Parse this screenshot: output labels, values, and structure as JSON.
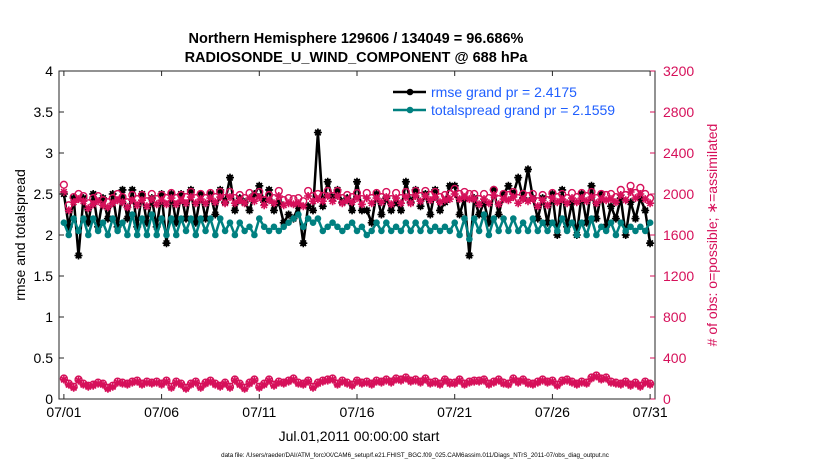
{
  "chart_data": {
    "type": "line",
    "title": "Northern Hemisphere 129606 / 134049 = 96.686%",
    "subtitle": "RADIOSONDE_U_WIND_COMPONENT @ 688 hPa",
    "xlabel": "Jul.01,2011 00:00:00 start",
    "ylabel": "rmse and totalspread",
    "y2label": "# of obs: o=possible; ∗=assimilated",
    "footnote": "data file: /Users/raeder/DAI/ATM_forcXX/CAM6_setup/f.e21.FHIST_BGC.f09_025.CAM6assim.011/Diags_NTrS_2011-07/obs_diag_output.nc",
    "xlim": [
      0.75,
      31.25
    ],
    "ylim": [
      0,
      4
    ],
    "y2lim": [
      0,
      3200
    ],
    "x_tick_values": [
      1,
      6,
      11,
      16,
      21,
      26,
      31
    ],
    "x_tick_labels": [
      "07/01",
      "07/06",
      "07/11",
      "07/16",
      "07/21",
      "07/26",
      "07/31"
    ],
    "y_tick_values": [
      0,
      0.5,
      1,
      1.5,
      2,
      2.5,
      3,
      3.5,
      4
    ],
    "y_tick_labels": [
      "0",
      "0.5",
      "1",
      "1.5",
      "2",
      "2.5",
      "3",
      "3.5",
      "4"
    ],
    "y2_tick_values": [
      0,
      400,
      800,
      1200,
      1600,
      2000,
      2400,
      2800,
      3200
    ],
    "y2_tick_labels": [
      "0",
      "400",
      "800",
      "1200",
      "1600",
      "2000",
      "2400",
      "2800",
      "3200"
    ],
    "grid": false,
    "legend_position": "top-right",
    "colors": {
      "rmse": "#000000",
      "spread": "#008080",
      "obs": "#d6105a",
      "legend_text": "#1f5fff"
    },
    "x": [
      1.0,
      1.25,
      1.5,
      1.75,
      2.0,
      2.25,
      2.5,
      2.75,
      3.0,
      3.25,
      3.5,
      3.75,
      4.0,
      4.25,
      4.5,
      4.75,
      5.0,
      5.25,
      5.5,
      5.75,
      6.0,
      6.25,
      6.5,
      6.75,
      7.0,
      7.25,
      7.5,
      7.75,
      8.0,
      8.25,
      8.5,
      8.75,
      9.0,
      9.25,
      9.5,
      9.75,
      10.0,
      10.25,
      10.5,
      10.75,
      11.0,
      11.25,
      11.5,
      11.75,
      12.0,
      12.25,
      12.5,
      12.75,
      13.0,
      13.25,
      13.5,
      13.75,
      14.0,
      14.25,
      14.5,
      14.75,
      15.0,
      15.25,
      15.5,
      15.75,
      16.0,
      16.25,
      16.5,
      16.75,
      17.0,
      17.25,
      17.5,
      17.75,
      18.0,
      18.25,
      18.5,
      18.75,
      19.0,
      19.25,
      19.5,
      19.75,
      20.0,
      20.25,
      20.5,
      20.75,
      21.0,
      21.25,
      21.5,
      21.75,
      22.0,
      22.25,
      22.5,
      22.75,
      23.0,
      23.25,
      23.5,
      23.75,
      24.0,
      24.25,
      24.5,
      24.75,
      25.0,
      25.25,
      25.5,
      25.75,
      26.0,
      26.25,
      26.5,
      26.75,
      27.0,
      27.25,
      27.5,
      27.75,
      28.0,
      28.25,
      28.5,
      28.75,
      29.0,
      29.25,
      29.5,
      29.75,
      30.0,
      30.25,
      30.5,
      30.75,
      31.0
    ],
    "series": [
      {
        "name": "rmse grand pr = 2.4175",
        "axis": "left",
        "marker": "filled-circle-asterisk",
        "values": [
          2.5,
          2.1,
          2.45,
          1.75,
          2.45,
          2.15,
          2.5,
          2.1,
          2.45,
          2.2,
          2.5,
          2.1,
          2.55,
          2.2,
          2.55,
          2.1,
          2.5,
          2.15,
          2.45,
          2.1,
          2.5,
          1.9,
          2.5,
          2.15,
          2.5,
          2.2,
          2.55,
          2.15,
          2.5,
          2.2,
          2.5,
          2.25,
          2.55,
          2.4,
          2.7,
          2.3,
          2.45,
          2.4,
          2.3,
          2.5,
          2.6,
          2.4,
          2.55,
          2.3,
          2.4,
          2.15,
          2.25,
          2.2,
          2.35,
          1.9,
          2.35,
          2.3,
          3.25,
          2.35,
          2.65,
          2.45,
          2.55,
          2.4,
          2.45,
          2.3,
          2.65,
          2.3,
          2.3,
          2.15,
          2.5,
          2.25,
          2.45,
          2.3,
          2.4,
          2.3,
          2.65,
          2.4,
          2.55,
          2.35,
          2.5,
          2.25,
          2.55,
          2.3,
          2.4,
          2.6,
          2.6,
          2.25,
          2.45,
          1.75,
          2.45,
          2.25,
          2.4,
          2.15,
          2.55,
          2.25,
          2.5,
          2.6,
          2.5,
          2.7,
          2.45,
          2.8,
          2.45,
          2.2,
          2.45,
          2.15,
          2.5,
          2.0,
          2.55,
          2.1,
          2.4,
          2.0,
          2.5,
          2.15,
          2.6,
          2.2,
          2.5,
          2.1,
          2.35,
          2.2,
          2.45,
          2.0,
          2.4,
          2.2,
          2.45,
          2.3,
          1.9
        ]
      },
      {
        "name": "totalspread grand pr = 2.1559",
        "axis": "left",
        "marker": "filled-circle",
        "values": [
          2.15,
          2.0,
          2.2,
          2.05,
          2.2,
          2.0,
          2.2,
          2.05,
          2.15,
          2.0,
          2.2,
          2.05,
          2.15,
          2.0,
          2.25,
          2.0,
          2.2,
          2.0,
          2.25,
          2.0,
          2.2,
          2.0,
          2.2,
          2.0,
          2.2,
          2.05,
          2.2,
          2.0,
          2.2,
          2.05,
          2.2,
          2.0,
          2.2,
          2.05,
          2.15,
          2.0,
          2.15,
          2.05,
          2.1,
          2.0,
          2.2,
          2.1,
          2.05,
          2.1,
          2.05,
          2.1,
          2.15,
          2.2,
          2.25,
          2.1,
          2.2,
          2.15,
          2.2,
          2.05,
          2.1,
          2.15,
          2.1,
          2.05,
          2.1,
          2.15,
          2.05,
          2.1,
          2.0,
          2.05,
          2.15,
          2.05,
          2.15,
          2.05,
          2.1,
          2.05,
          2.15,
          2.05,
          2.15,
          2.05,
          2.15,
          2.05,
          2.1,
          2.05,
          2.1,
          2.05,
          2.15,
          2.0,
          2.2,
          1.95,
          2.2,
          2.05,
          2.25,
          2.0,
          2.2,
          2.05,
          2.2,
          2.05,
          2.2,
          2.05,
          2.15,
          2.05,
          2.2,
          2.05,
          2.15,
          2.05,
          2.15,
          2.05,
          2.2,
          2.05,
          2.15,
          2.0,
          2.15,
          2.0,
          2.2,
          2.0,
          2.1,
          2.05,
          2.15,
          2.0,
          2.15,
          2.05,
          2.1,
          2.05,
          2.1,
          2.05,
          2.15
        ]
      },
      {
        "name": "# obs possible",
        "axis": "right",
        "marker": "open-circle",
        "values": [
          2090,
          1890,
          1970,
          2000,
          1980,
          1910,
          1960,
          1980,
          1940,
          1920,
          1960,
          2000,
          1970,
          1920,
          1990,
          1950,
          1990,
          1930,
          2000,
          1950,
          1990,
          1960,
          2010,
          1960,
          1990,
          1970,
          2020,
          1960,
          2000,
          1960,
          2010,
          1970,
          2020,
          1960,
          2020,
          1960,
          1990,
          1960,
          2010,
          1980,
          2020,
          1940,
          1990,
          1960,
          2030,
          1940,
          1960,
          1950,
          1960,
          1930,
          2030,
          1980,
          2000,
          1980,
          2030,
          1980,
          2030,
          1960,
          1990,
          1970,
          2010,
          1950,
          2010,
          1960,
          2010,
          1970,
          2020,
          1950,
          2010,
          1960,
          2020,
          1960,
          2030,
          1980,
          2030,
          1990,
          2020,
          1970,
          1990,
          2000,
          2050,
          2000,
          2020,
          2000,
          2000,
          1950,
          2000,
          1960,
          2040,
          1950,
          2000,
          1990,
          2020,
          1960,
          2000,
          1980,
          2000,
          1930,
          1990,
          1940,
          2010,
          1970,
          2000,
          1960,
          2010,
          1970,
          2010,
          1980,
          2020,
          1960,
          2000,
          1990,
          2000,
          1970,
          2040,
          1990,
          2080,
          2010,
          2060,
          2000,
          1960
        ]
      },
      {
        "name": "# obs assimilated",
        "axis": "right",
        "marker": "asterisk",
        "values": [
          2020,
          1840,
          1920,
          1950,
          1930,
          1860,
          1900,
          1930,
          1890,
          1870,
          1910,
          1940,
          1920,
          1870,
          1940,
          1890,
          1940,
          1880,
          1950,
          1900,
          1940,
          1900,
          1960,
          1900,
          1940,
          1910,
          1970,
          1910,
          1950,
          1910,
          1960,
          1920,
          1970,
          1910,
          1970,
          1910,
          1940,
          1910,
          1960,
          1930,
          1970,
          1890,
          1940,
          1910,
          1980,
          1890,
          1910,
          1900,
          1910,
          1880,
          1980,
          1930,
          1950,
          1930,
          1980,
          1930,
          1980,
          1910,
          1940,
          1920,
          1960,
          1900,
          1960,
          1910,
          1960,
          1920,
          1970,
          1900,
          1960,
          1910,
          1970,
          1910,
          1980,
          1930,
          1980,
          1940,
          1970,
          1920,
          1940,
          1950,
          2000,
          1950,
          1970,
          1950,
          1950,
          1900,
          1950,
          1910,
          1990,
          1900,
          1950,
          1940,
          1970,
          1910,
          1950,
          1930,
          1950,
          1880,
          1940,
          1890,
          1960,
          1920,
          1950,
          1910,
          1960,
          1920,
          1960,
          1930,
          1970,
          1910,
          1950,
          1940,
          1950,
          1920,
          1990,
          1940,
          2020,
          1960,
          2000,
          1950,
          1910
        ]
      },
      {
        "name": "# obs possible (low)",
        "axis": "right",
        "marker": "open-circle",
        "values": [
          200,
          150,
          120,
          190,
          150,
          130,
          140,
          160,
          150,
          110,
          130,
          170,
          160,
          150,
          170,
          180,
          150,
          170,
          160,
          170,
          150,
          180,
          120,
          170,
          150,
          110,
          150,
          170,
          120,
          160,
          180,
          150,
          130,
          160,
          120,
          190,
          150,
          110,
          160,
          190,
          120,
          150,
          190,
          140,
          170,
          160,
          180,
          200,
          160,
          150,
          180,
          120,
          160,
          180,
          190,
          200,
          150,
          180,
          160,
          140,
          180,
          160,
          170,
          150,
          180,
          170,
          190,
          170,
          200,
          190,
          210,
          180,
          190,
          170,
          200,
          160,
          170,
          150,
          190,
          160,
          160,
          190,
          150,
          170,
          180,
          180,
          190,
          150,
          170,
          190,
          160,
          150,
          200,
          170,
          190,
          160,
          150,
          170,
          190,
          170,
          180,
          140,
          180,
          190,
          170,
          150,
          170,
          160,
          210,
          230,
          200,
          210,
          170,
          160,
          150,
          170,
          140,
          160,
          130,
          170,
          150
        ]
      },
      {
        "name": "# obs assimilated (low)",
        "axis": "right",
        "marker": "asterisk",
        "values": [
          190,
          140,
          110,
          180,
          140,
          120,
          130,
          150,
          140,
          100,
          120,
          160,
          150,
          140,
          160,
          170,
          140,
          160,
          150,
          160,
          140,
          170,
          110,
          160,
          140,
          100,
          140,
          160,
          110,
          150,
          170,
          140,
          120,
          150,
          110,
          180,
          140,
          100,
          150,
          180,
          110,
          140,
          180,
          130,
          160,
          150,
          170,
          190,
          150,
          140,
          170,
          110,
          150,
          170,
          180,
          190,
          140,
          170,
          150,
          130,
          170,
          150,
          160,
          140,
          170,
          160,
          180,
          160,
          190,
          180,
          200,
          170,
          180,
          160,
          190,
          150,
          160,
          140,
          180,
          150,
          150,
          180,
          140,
          160,
          170,
          170,
          180,
          140,
          160,
          180,
          150,
          140,
          190,
          160,
          180,
          150,
          140,
          160,
          180,
          160,
          170,
          130,
          170,
          180,
          160,
          140,
          160,
          150,
          200,
          220,
          190,
          200,
          160,
          150,
          140,
          160,
          130,
          150,
          120,
          160,
          140
        ]
      }
    ]
  }
}
